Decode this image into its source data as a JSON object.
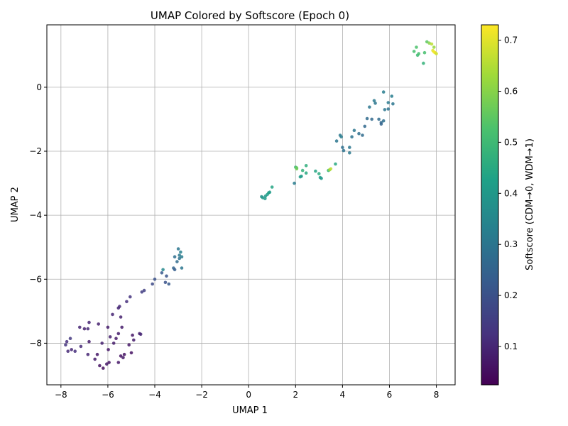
{
  "chart_data": {
    "type": "scatter",
    "title": "UMAP Colored by Softscore (Epoch 0)",
    "xlabel": "UMAP 1",
    "ylabel": "UMAP 2",
    "xlim": [
      -8.6,
      8.8
    ],
    "ylim": [
      -9.3,
      1.95
    ],
    "x_ticks": [
      -8,
      -6,
      -4,
      -2,
      0,
      2,
      4,
      6,
      8
    ],
    "y_ticks": [
      -8,
      -6,
      -4,
      -2,
      0
    ],
    "grid": true,
    "colormap": "viridis",
    "colorbar": {
      "label": "Softscore (CDM→0, WDM→1)",
      "range": [
        0.025,
        0.73
      ],
      "ticks": [
        0.1,
        0.2,
        0.3,
        0.4,
        0.5,
        0.6,
        0.7
      ]
    },
    "points": [
      {
        "x": -7.75,
        "y": -7.95,
        "c": 0.12
      },
      {
        "x": -7.8,
        "y": -8.05,
        "c": 0.13
      },
      {
        "x": -7.6,
        "y": -7.85,
        "c": 0.14
      },
      {
        "x": -7.7,
        "y": -8.25,
        "c": 0.11
      },
      {
        "x": -7.55,
        "y": -8.2,
        "c": 0.1
      },
      {
        "x": -7.4,
        "y": -8.25,
        "c": 0.12
      },
      {
        "x": -7.2,
        "y": -7.5,
        "c": 0.1
      },
      {
        "x": -7.15,
        "y": -8.1,
        "c": 0.11
      },
      {
        "x": -7.0,
        "y": -7.55,
        "c": 0.09
      },
      {
        "x": -6.85,
        "y": -7.55,
        "c": 0.11
      },
      {
        "x": -6.8,
        "y": -7.35,
        "c": 0.1
      },
      {
        "x": -6.85,
        "y": -8.35,
        "c": 0.1
      },
      {
        "x": -6.8,
        "y": -7.95,
        "c": 0.08
      },
      {
        "x": -6.55,
        "y": -8.5,
        "c": 0.08
      },
      {
        "x": -6.45,
        "y": -8.35,
        "c": 0.07
      },
      {
        "x": -6.4,
        "y": -7.4,
        "c": 0.09
      },
      {
        "x": -6.35,
        "y": -8.7,
        "c": 0.06
      },
      {
        "x": -6.2,
        "y": -8.78,
        "c": 0.05
      },
      {
        "x": -6.25,
        "y": -8.0,
        "c": 0.09
      },
      {
        "x": -6.05,
        "y": -8.65,
        "c": 0.07
      },
      {
        "x": -6.0,
        "y": -7.5,
        "c": 0.08
      },
      {
        "x": -5.95,
        "y": -8.6,
        "c": 0.06
      },
      {
        "x": -5.98,
        "y": -8.2,
        "c": 0.07
      },
      {
        "x": -5.9,
        "y": -7.8,
        "c": 0.09
      },
      {
        "x": -5.8,
        "y": -7.1,
        "c": 0.1
      },
      {
        "x": -5.75,
        "y": -8.0,
        "c": 0.08
      },
      {
        "x": -5.65,
        "y": -7.85,
        "c": 0.07
      },
      {
        "x": -5.55,
        "y": -7.7,
        "c": 0.08
      },
      {
        "x": -5.55,
        "y": -8.6,
        "c": 0.07
      },
      {
        "x": -5.5,
        "y": -6.85,
        "c": 0.11
      },
      {
        "x": -5.55,
        "y": -6.9,
        "c": 0.1
      },
      {
        "x": -5.45,
        "y": -8.4,
        "c": 0.06
      },
      {
        "x": -5.45,
        "y": -7.18,
        "c": 0.09
      },
      {
        "x": -5.4,
        "y": -7.5,
        "c": 0.08
      },
      {
        "x": -5.35,
        "y": -8.45,
        "c": 0.07
      },
      {
        "x": -5.3,
        "y": -8.35,
        "c": 0.06
      },
      {
        "x": -5.2,
        "y": -6.7,
        "c": 0.12
      },
      {
        "x": -5.05,
        "y": -6.55,
        "c": 0.13
      },
      {
        "x": -5.1,
        "y": -8.05,
        "c": 0.07
      },
      {
        "x": -5.0,
        "y": -8.3,
        "c": 0.06
      },
      {
        "x": -4.95,
        "y": -7.75,
        "c": 0.07
      },
      {
        "x": -4.9,
        "y": -7.9,
        "c": 0.08
      },
      {
        "x": -4.65,
        "y": -7.7,
        "c": 0.09
      },
      {
        "x": -4.6,
        "y": -7.72,
        "c": 0.1
      },
      {
        "x": -4.55,
        "y": -6.4,
        "c": 0.15
      },
      {
        "x": -4.45,
        "y": -6.35,
        "c": 0.16
      },
      {
        "x": -4.1,
        "y": -6.15,
        "c": 0.18
      },
      {
        "x": -4.0,
        "y": -6.0,
        "c": 0.2
      },
      {
        "x": -3.7,
        "y": -5.8,
        "c": 0.22
      },
      {
        "x": -3.65,
        "y": -5.7,
        "c": 0.35
      },
      {
        "x": -3.55,
        "y": -6.1,
        "c": 0.2
      },
      {
        "x": -3.5,
        "y": -5.9,
        "c": 0.21
      },
      {
        "x": -3.4,
        "y": -6.15,
        "c": 0.22
      },
      {
        "x": -3.2,
        "y": -5.65,
        "c": 0.25
      },
      {
        "x": -3.15,
        "y": -5.7,
        "c": 0.23
      },
      {
        "x": -3.15,
        "y": -5.3,
        "c": 0.28
      },
      {
        "x": -3.05,
        "y": -5.45,
        "c": 0.27
      },
      {
        "x": -3.0,
        "y": -5.05,
        "c": 0.3
      },
      {
        "x": -2.95,
        "y": -5.25,
        "c": 0.31
      },
      {
        "x": -2.95,
        "y": -5.35,
        "c": 0.29
      },
      {
        "x": -2.9,
        "y": -5.15,
        "c": 0.33
      },
      {
        "x": -2.85,
        "y": -5.3,
        "c": 0.32
      },
      {
        "x": -2.85,
        "y": -5.65,
        "c": 0.3
      },
      {
        "x": 0.55,
        "y": -3.42,
        "c": 0.38
      },
      {
        "x": 0.6,
        "y": -3.45,
        "c": 0.4
      },
      {
        "x": 0.7,
        "y": -3.48,
        "c": 0.41
      },
      {
        "x": 0.72,
        "y": -3.4,
        "c": 0.4
      },
      {
        "x": 0.8,
        "y": -3.35,
        "c": 0.42
      },
      {
        "x": 0.85,
        "y": -3.3,
        "c": 0.43
      },
      {
        "x": 0.9,
        "y": -3.28,
        "c": 0.41
      },
      {
        "x": 1.0,
        "y": -3.12,
        "c": 0.44
      },
      {
        "x": 1.95,
        "y": -3.0,
        "c": 0.32
      },
      {
        "x": 2.0,
        "y": -2.5,
        "c": 0.5
      },
      {
        "x": 2.05,
        "y": -2.55,
        "c": 0.58
      },
      {
        "x": 2.05,
        "y": -2.52,
        "c": 0.56
      },
      {
        "x": 2.2,
        "y": -2.8,
        "c": 0.42
      },
      {
        "x": 2.25,
        "y": -2.78,
        "c": 0.41
      },
      {
        "x": 2.3,
        "y": -2.6,
        "c": 0.48
      },
      {
        "x": 2.45,
        "y": -2.45,
        "c": 0.47
      },
      {
        "x": 2.45,
        "y": -2.68,
        "c": 0.45
      },
      {
        "x": 2.85,
        "y": -2.62,
        "c": 0.44
      },
      {
        "x": 3.0,
        "y": -2.7,
        "c": 0.46
      },
      {
        "x": 3.05,
        "y": -2.82,
        "c": 0.42
      },
      {
        "x": 3.1,
        "y": -2.85,
        "c": 0.4
      },
      {
        "x": 3.4,
        "y": -2.6,
        "c": 0.48
      },
      {
        "x": 3.45,
        "y": -2.58,
        "c": 0.62
      },
      {
        "x": 3.5,
        "y": -2.55,
        "c": 0.66
      },
      {
        "x": 3.7,
        "y": -2.4,
        "c": 0.45
      },
      {
        "x": 3.75,
        "y": -1.68,
        "c": 0.3
      },
      {
        "x": 3.9,
        "y": -1.5,
        "c": 0.31
      },
      {
        "x": 3.95,
        "y": -1.55,
        "c": 0.32
      },
      {
        "x": 4.0,
        "y": -1.88,
        "c": 0.28
      },
      {
        "x": 4.05,
        "y": -1.98,
        "c": 0.29
      },
      {
        "x": 4.3,
        "y": -1.88,
        "c": 0.3
      },
      {
        "x": 4.3,
        "y": -2.05,
        "c": 0.31
      },
      {
        "x": 4.4,
        "y": -1.55,
        "c": 0.29
      },
      {
        "x": 4.5,
        "y": -1.35,
        "c": 0.3
      },
      {
        "x": 4.7,
        "y": -1.45,
        "c": 0.28
      },
      {
        "x": 4.85,
        "y": -1.5,
        "c": 0.27
      },
      {
        "x": 4.95,
        "y": -1.22,
        "c": 0.26
      },
      {
        "x": 5.05,
        "y": -0.98,
        "c": 0.27
      },
      {
        "x": 5.15,
        "y": -0.62,
        "c": 0.3
      },
      {
        "x": 5.25,
        "y": -1.0,
        "c": 0.26
      },
      {
        "x": 5.35,
        "y": -0.42,
        "c": 0.31
      },
      {
        "x": 5.4,
        "y": -0.5,
        "c": 0.3
      },
      {
        "x": 5.55,
        "y": -1.0,
        "c": 0.27
      },
      {
        "x": 5.65,
        "y": -1.1,
        "c": 0.26
      },
      {
        "x": 5.65,
        "y": -1.15,
        "c": 0.25
      },
      {
        "x": 5.75,
        "y": -1.05,
        "c": 0.28
      },
      {
        "x": 5.75,
        "y": -0.15,
        "c": 0.32
      },
      {
        "x": 5.8,
        "y": -0.7,
        "c": 0.3
      },
      {
        "x": 5.95,
        "y": -0.68,
        "c": 0.29
      },
      {
        "x": 5.95,
        "y": -0.48,
        "c": 0.31
      },
      {
        "x": 6.1,
        "y": -0.28,
        "c": 0.32
      },
      {
        "x": 6.15,
        "y": -0.52,
        "c": 0.3
      },
      {
        "x": 7.05,
        "y": 1.12,
        "c": 0.52
      },
      {
        "x": 7.15,
        "y": 1.25,
        "c": 0.53
      },
      {
        "x": 7.2,
        "y": 1.0,
        "c": 0.5
      },
      {
        "x": 7.25,
        "y": 1.05,
        "c": 0.52
      },
      {
        "x": 7.45,
        "y": 0.75,
        "c": 0.48
      },
      {
        "x": 7.5,
        "y": 1.08,
        "c": 0.52
      },
      {
        "x": 7.6,
        "y": 1.42,
        "c": 0.55
      },
      {
        "x": 7.7,
        "y": 1.38,
        "c": 0.6
      },
      {
        "x": 7.8,
        "y": 1.35,
        "c": 0.66
      },
      {
        "x": 7.85,
        "y": 1.15,
        "c": 0.7
      },
      {
        "x": 7.9,
        "y": 1.25,
        "c": 0.62
      },
      {
        "x": 7.9,
        "y": 1.1,
        "c": 0.72
      },
      {
        "x": 7.95,
        "y": 1.08,
        "c": 0.71
      },
      {
        "x": 8.0,
        "y": 1.05,
        "c": 0.68
      }
    ]
  }
}
